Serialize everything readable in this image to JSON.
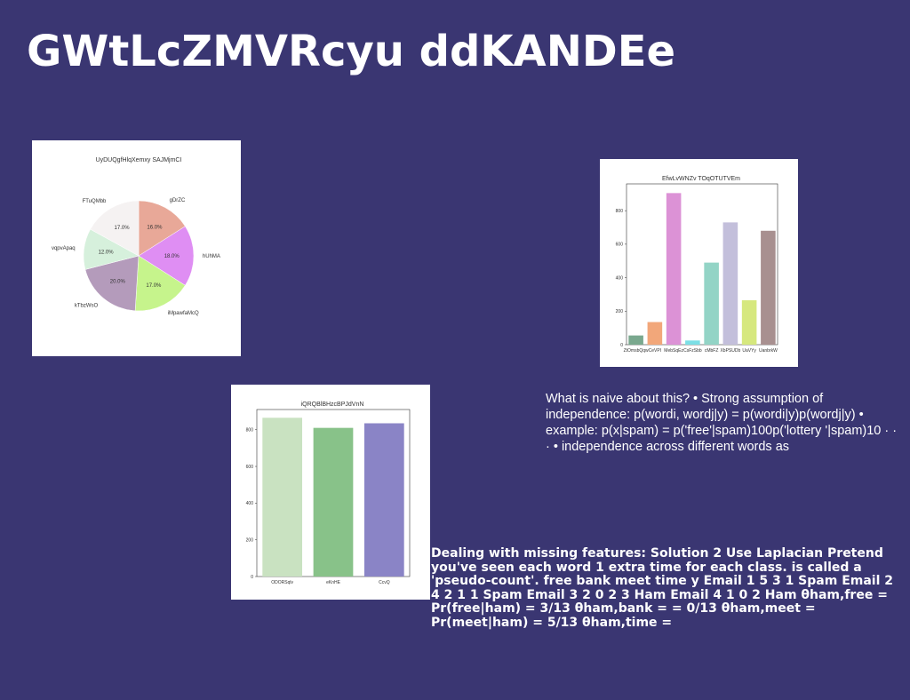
{
  "slide": {
    "title": "GWtLcZMVRcyu ddKANDEe",
    "text_block_1": "What is naive about this? • Strong assumption of independence: p(wordi, wordj|y) = p(wordi|y)p(wordj|y) • example: p(x|spam) = p('free'|spam)100p('lottery '|spam)10 · · · • independence across different words as",
    "text_block_2": "Dealing with missing features: Solution 2 Use Laplacian Pretend you've seen each word 1 extra time for each class. is called a 'pseudo-count'. free bank meet time y Email 1 5 3 1 Spam Email 2 4 2 1 1 Spam Email 3 2 0 2 3 Ham Email 4 1 0 2 Ham θham,free = Pr(free|ham) = 3/13 θham,bank = = 0/13 θham,meet = Pr(meet|ham) = 5/13 θham,time ="
  },
  "chart_data": [
    {
      "type": "pie",
      "title": "UyDUQgfHlqXemxy SAJMjmCI",
      "labels": [
        "gDrZC",
        "hUhMA",
        "iMpawfaMcQ",
        "kTbzWsO",
        "vqpvApaq",
        "FTuQMbb"
      ],
      "values": [
        16.0,
        18.0,
        17.0,
        20.0,
        12.0,
        17.0
      ],
      "pct_labels": [
        "16.0%",
        "18.0%",
        "17.0%",
        "20.0%",
        "12.0%",
        "17.0%"
      ],
      "colors": [
        "#e8a898",
        "#df8ef3",
        "#c6f48c",
        "#b49bbb",
        "#d6f0dc",
        "#f5f2f2"
      ]
    },
    {
      "type": "bar",
      "title": "EfwLvWNZv TOqOTUTVEm",
      "categories": [
        "ZtOmsbQqw",
        "CeVPI",
        "MebSqEz",
        "CsFzSbb",
        "cMbFZ",
        "XbPSUDb",
        "UaVYy",
        "UanbrkW"
      ],
      "values": [
        55,
        135,
        905,
        25,
        490,
        730,
        265,
        680
      ],
      "colors": [
        "#7aa88e",
        "#f2a77a",
        "#dc92d6",
        "#7cdfe6",
        "#93d4c6",
        "#c3bfdb",
        "#d6e87e",
        "#a89090"
      ],
      "ylim": [
        0,
        960
      ],
      "yticks": [
        0,
        200,
        400,
        600,
        800
      ]
    },
    {
      "type": "bar",
      "title": "iQRQBlBHzcBPJdVnN",
      "categories": [
        "ODORSqlv",
        "eKnHE",
        "CcvQ"
      ],
      "values": [
        865,
        810,
        835
      ],
      "colors": [
        "#c9e2c1",
        "#88c289",
        "#8a84c6"
      ],
      "ylim": [
        0,
        910
      ],
      "yticks": [
        0,
        200,
        400,
        600,
        800
      ]
    }
  ]
}
